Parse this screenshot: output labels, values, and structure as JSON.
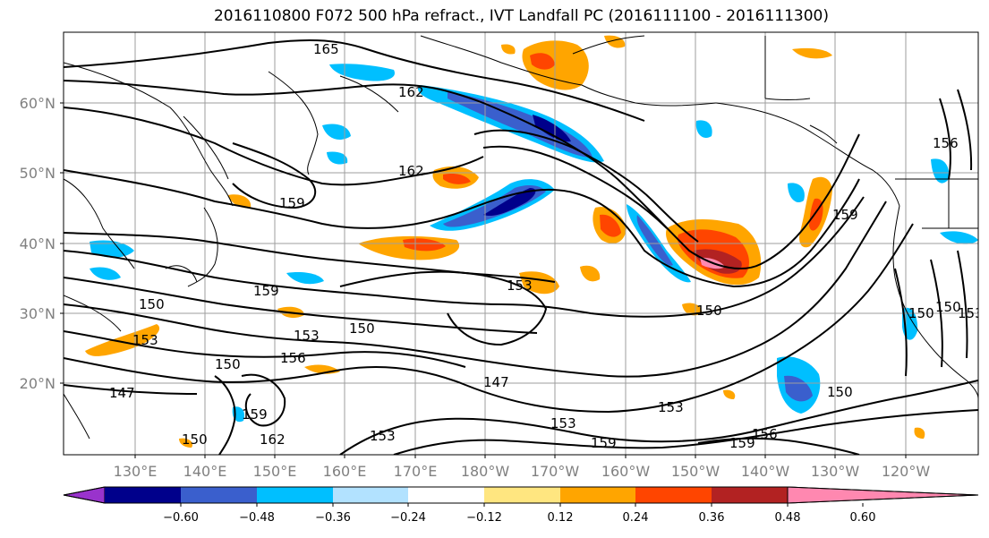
{
  "title": "2016110800 F072 500 hPa refract., IVT Landfall PC (2016111100 - 2016111300)",
  "lat_labels": [
    "60°N",
    "50°N",
    "40°N",
    "30°N",
    "20°N"
  ],
  "lon_labels": [
    "130°E",
    "140°E",
    "150°E",
    "160°E",
    "170°E",
    "180°W",
    "170°W",
    "160°W",
    "150°W",
    "140°W",
    "130°W",
    "120°W"
  ],
  "contour_labels": [
    "165",
    "162",
    "162",
    "159",
    "159",
    "159",
    "150",
    "150",
    "153",
    "153",
    "150",
    "153",
    "156",
    "147",
    "147",
    "153",
    "153",
    "153",
    "159",
    "162",
    "159",
    "150",
    "150",
    "156",
    "156",
    "159",
    "150",
    "153",
    "150",
    "150"
  ],
  "colorbar": {
    "colors": [
      "#9933cc",
      "#00008b",
      "#3a5fcd",
      "#00bfff",
      "#b2e2ff",
      "#ffffff",
      "#ffe680",
      "#ffa500",
      "#ff4500",
      "#b22222",
      "#ff88b0"
    ],
    "labels": [
      "−0.60",
      "−0.48",
      "−0.36",
      "−0.24",
      "−0.12",
      "0.12",
      "0.24",
      "0.36",
      "0.48",
      "0.60"
    ]
  }
}
